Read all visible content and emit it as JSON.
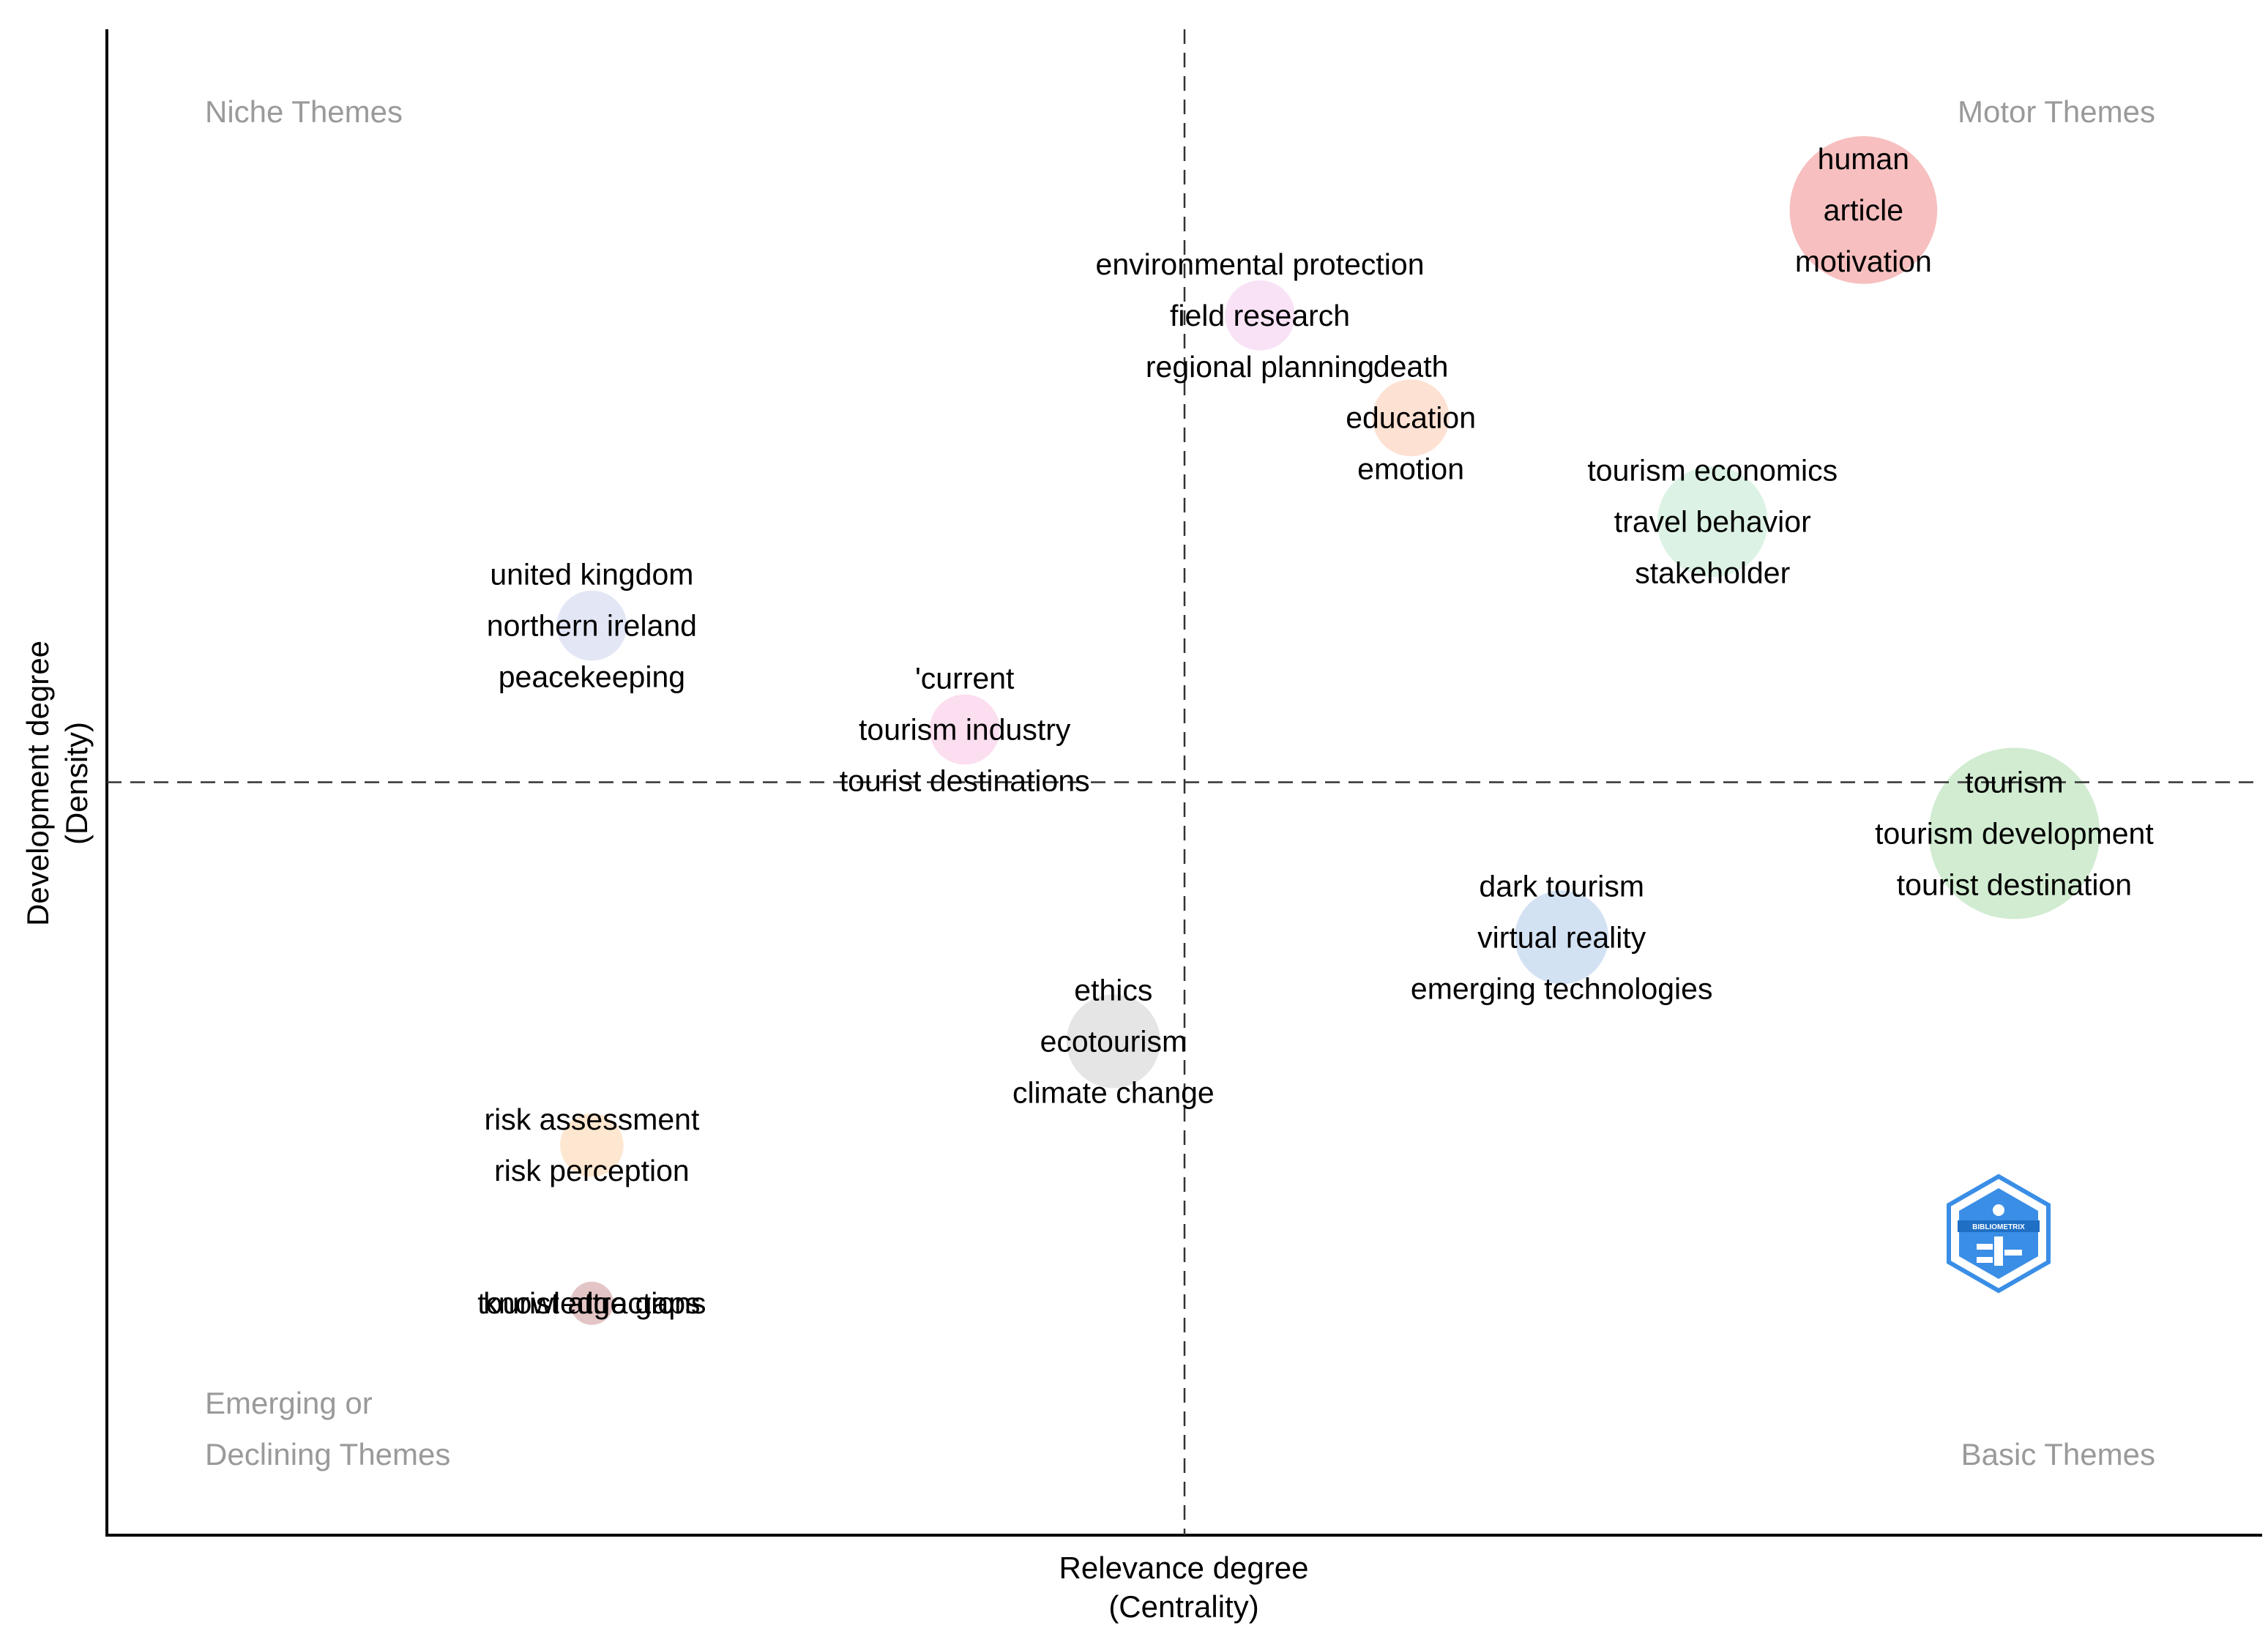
{
  "chart_data": {
    "type": "scatter",
    "title": "",
    "xlabel": [
      "Relevance degree",
      "(Centrality)"
    ],
    "ylabel": [
      "Development degree",
      "(Density)"
    ],
    "xlim": [
      0,
      100
    ],
    "ylim": [
      0,
      100
    ],
    "reference_lines": {
      "x": 50,
      "y": 50
    },
    "grid": false,
    "quadrant_labels": {
      "top_left": [
        "Niche Themes"
      ],
      "top_right": [
        "Motor Themes"
      ],
      "bottom_left": [
        "Emerging or",
        "Declining Themes"
      ],
      "bottom_right": [
        "Basic Themes"
      ]
    },
    "clusters": [
      {
        "x": 81.5,
        "y": 88.0,
        "size": 3.6,
        "color": "#f08080",
        "labels": [
          "human",
          "article",
          "motivation"
        ]
      },
      {
        "x": 53.5,
        "y": 81.0,
        "size": 1.3,
        "color": "#f3c6ee",
        "labels": [
          "environmental protection",
          "field research",
          "regional planning"
        ]
      },
      {
        "x": 60.5,
        "y": 74.2,
        "size": 1.5,
        "color": "#fcc5a8",
        "labels": [
          "death",
          "education",
          "emotion"
        ]
      },
      {
        "x": 74.5,
        "y": 67.3,
        "size": 2.5,
        "color": "#b9e6c9",
        "labels": [
          "tourism economics",
          "travel behavior",
          "stakeholder"
        ]
      },
      {
        "x": 22.5,
        "y": 60.4,
        "size": 1.3,
        "color": "#c7d0ec",
        "labels": [
          "united kingdom",
          "northern ireland",
          "peacekeeping"
        ]
      },
      {
        "x": 39.8,
        "y": 53.5,
        "size": 1.3,
        "color": "#f8bde0",
        "labels": [
          "'current",
          "tourism industry",
          "tourist destinations"
        ]
      },
      {
        "x": 88.5,
        "y": 46.6,
        "size": 4.3,
        "color": "#a4d9a4",
        "labels": [
          "tourism",
          "tourism development",
          "tourist destination"
        ]
      },
      {
        "x": 67.5,
        "y": 39.7,
        "size": 2.0,
        "color": "#a8c6e8",
        "labels": [
          "dark tourism",
          "virtual reality",
          "emerging technologies"
        ]
      },
      {
        "x": 46.7,
        "y": 32.8,
        "size": 2.0,
        "color": "#cccccc",
        "labels": [
          "ethics",
          "ecotourism",
          "climate change"
        ]
      },
      {
        "x": 22.5,
        "y": 25.9,
        "size": 1.1,
        "color": "#fdd0a2",
        "labels": [
          "risk assessment",
          "risk perception"
        ]
      },
      {
        "x": 22.5,
        "y": 15.4,
        "size": 0.5,
        "color": "#c98b8b",
        "labels": [
          "tourist attractions",
          "knowledge gaps"
        ]
      }
    ]
  },
  "logo": {
    "name": "bibliometrix-logo",
    "text": "BIBLIOMETRIX",
    "color": "#3a8ee6"
  }
}
